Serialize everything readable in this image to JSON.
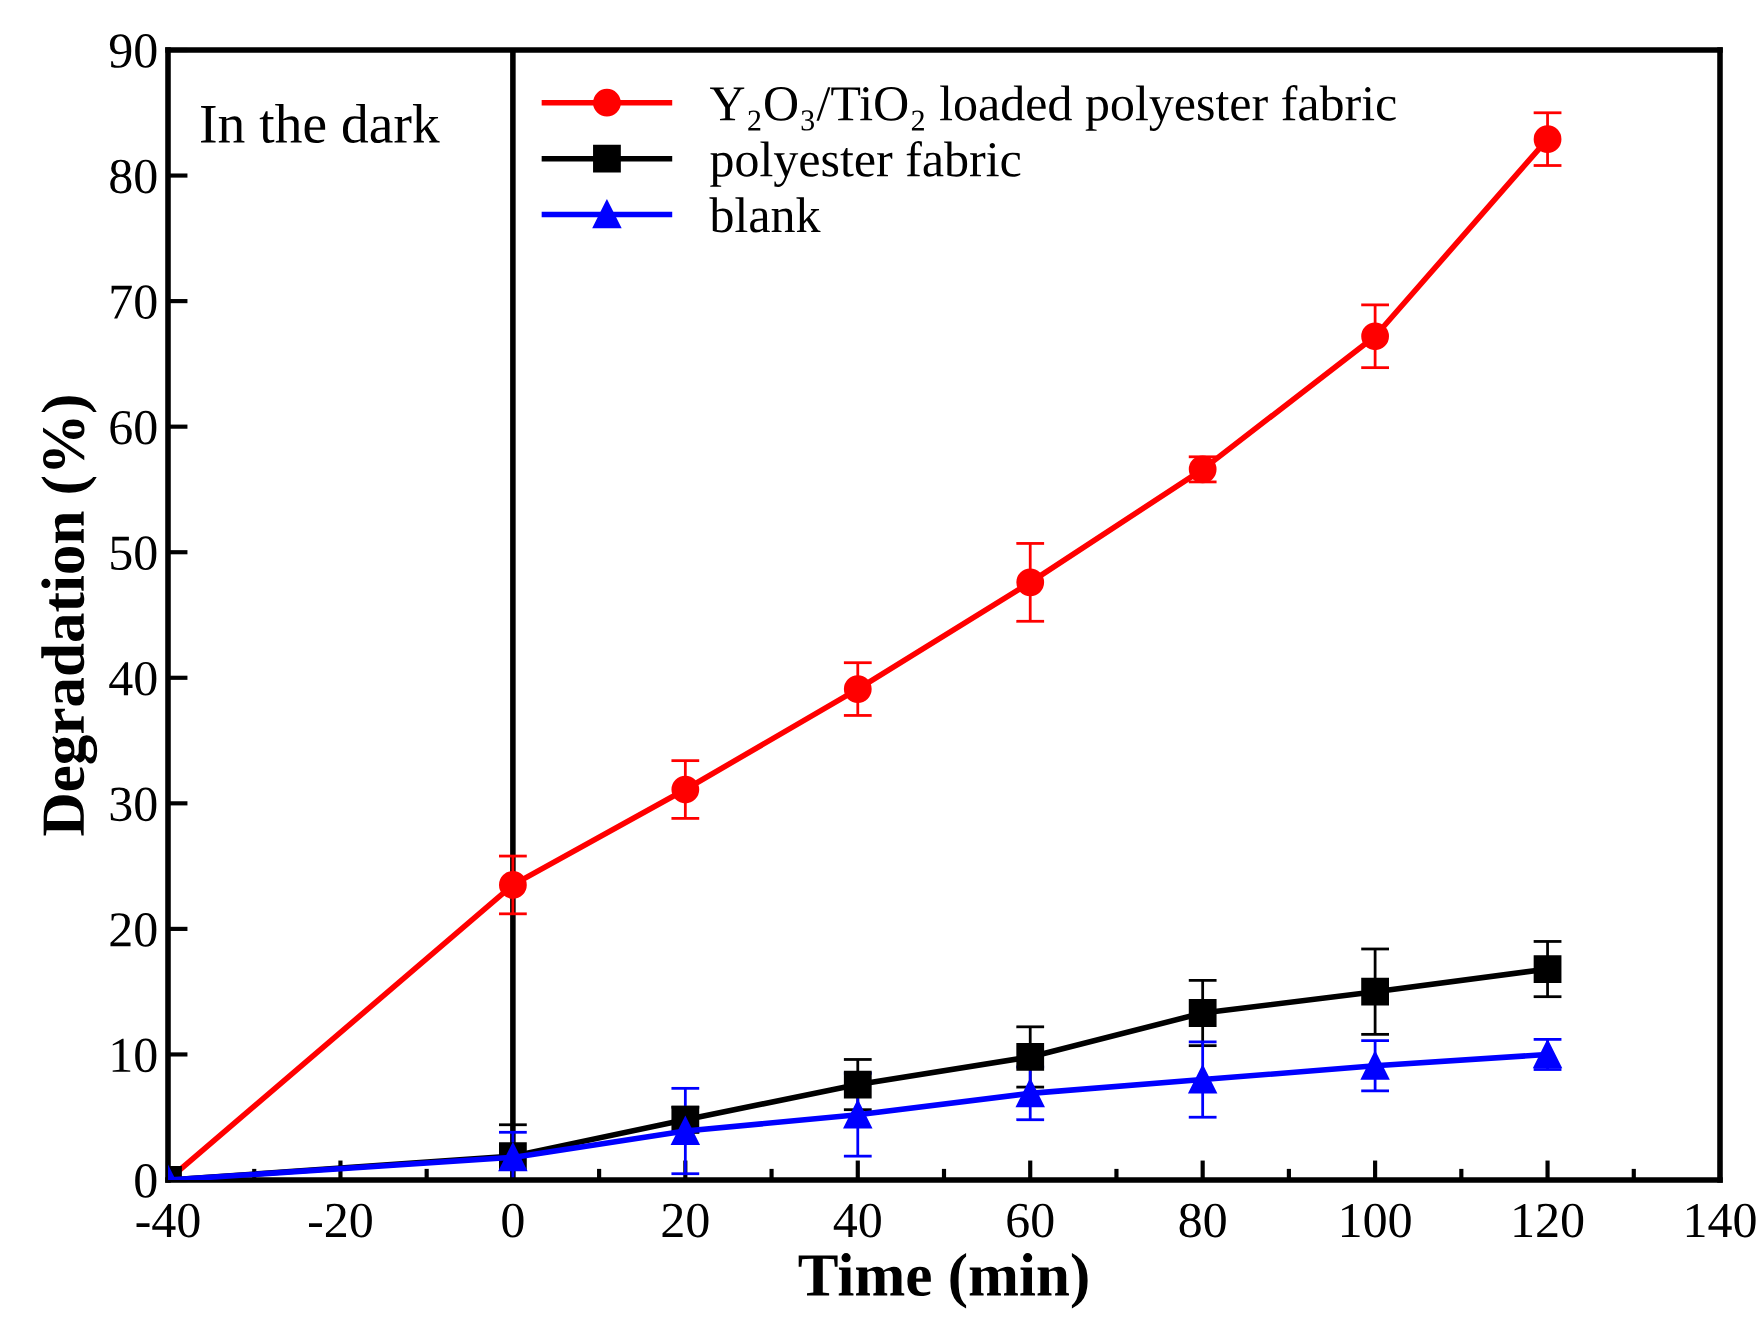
{
  "chart_data": {
    "type": "line",
    "xlabel": "Time (min)",
    "ylabel": "Degradation (%)",
    "x": [
      -40,
      0,
      20,
      40,
      60,
      80,
      100,
      120
    ],
    "series": [
      {
        "name": "Y₂O₃/TiO₂ loaded polyester fabric",
        "color": "#ff0000",
        "marker": "circle",
        "values": [
          0,
          23.5,
          31.1,
          39.1,
          47.6,
          56.6,
          67.2,
          82.9
        ],
        "errors": [
          null,
          2.3,
          2.3,
          2.1,
          3.1,
          1.0,
          2.5,
          2.1
        ]
      },
      {
        "name": "polyester fabric",
        "color": "#000000",
        "marker": "square",
        "values": [
          0,
          1.9,
          4.8,
          7.6,
          9.8,
          13.3,
          15.0,
          16.8
        ],
        "errors": [
          null,
          2.5,
          1.0,
          2.0,
          2.4,
          2.6,
          3.4,
          2.2
        ]
      },
      {
        "name": "blank",
        "color": "#0000ff",
        "marker": "triangle",
        "values": [
          0,
          1.8,
          3.9,
          5.2,
          6.9,
          8.0,
          9.1,
          10.0
        ],
        "errors": [
          null,
          2.0,
          3.4,
          3.3,
          2.1,
          3.0,
          2.0,
          1.2
        ]
      }
    ],
    "xlim": [
      -40,
      140
    ],
    "xticks": [
      -40,
      -20,
      0,
      20,
      40,
      60,
      80,
      100,
      120,
      140
    ],
    "ylim": [
      0,
      90
    ],
    "yticks": [
      0,
      10,
      20,
      30,
      40,
      50,
      60,
      70,
      80,
      90
    ],
    "ref_lines": [
      {
        "axis": "x",
        "value": 0,
        "color": "#000000",
        "line_style": "solid"
      }
    ],
    "annotations": [
      "In the dark"
    ],
    "legend": "top left",
    "grid": false,
    "line_style": "solid"
  }
}
